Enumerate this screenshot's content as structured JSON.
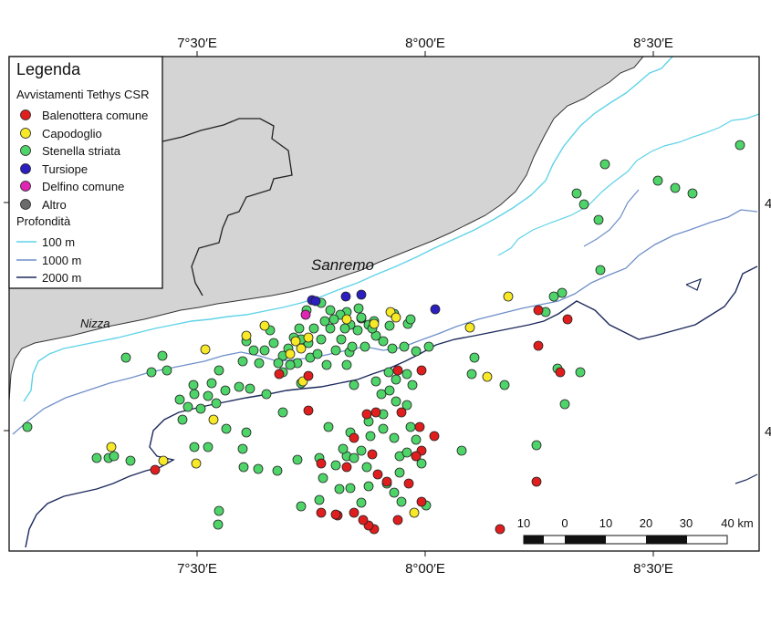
{
  "grid": {
    "top_labels": [
      "7°30′E",
      "8°00′E",
      "8°30′E"
    ],
    "bottom_labels": [
      "7°30′E",
      "8°00′E",
      "8°30′E"
    ],
    "right_labels": [
      "4",
      "4"
    ]
  },
  "places": {
    "sanremo": "Sanremo",
    "nizza": "Nizza"
  },
  "legend": {
    "title": "Legenda",
    "section_sightings": "Avvistamenti Tethys CSR",
    "species": [
      {
        "key": "balenottera",
        "label": "Balenottera comune",
        "color": "#e01e1e"
      },
      {
        "key": "capodoglio",
        "label": "Capodoglio",
        "color": "#f7e928"
      },
      {
        "key": "stenella",
        "label": "Stenella striata",
        "color": "#4fd46a"
      },
      {
        "key": "tursiope",
        "label": "Tursiope",
        "color": "#2b1fc0"
      },
      {
        "key": "delfino",
        "label": "Delfino comune",
        "color": "#e024b4"
      },
      {
        "key": "altro",
        "label": "Altro",
        "color": "#6b6b6b"
      }
    ],
    "section_depth": "Profondità",
    "depths": [
      {
        "label": "100 m",
        "color": "#5fd3e8"
      },
      {
        "label": "1000 m",
        "color": "#6f8fc8"
      },
      {
        "label": "2000 m",
        "color": "#1c2a5c"
      }
    ]
  },
  "scalebar": {
    "labels": [
      "10",
      "0",
      "10",
      "20",
      "30",
      "40 km"
    ]
  },
  "colors": {
    "land": "#d4d4d4",
    "sea": "#ffffff"
  }
}
